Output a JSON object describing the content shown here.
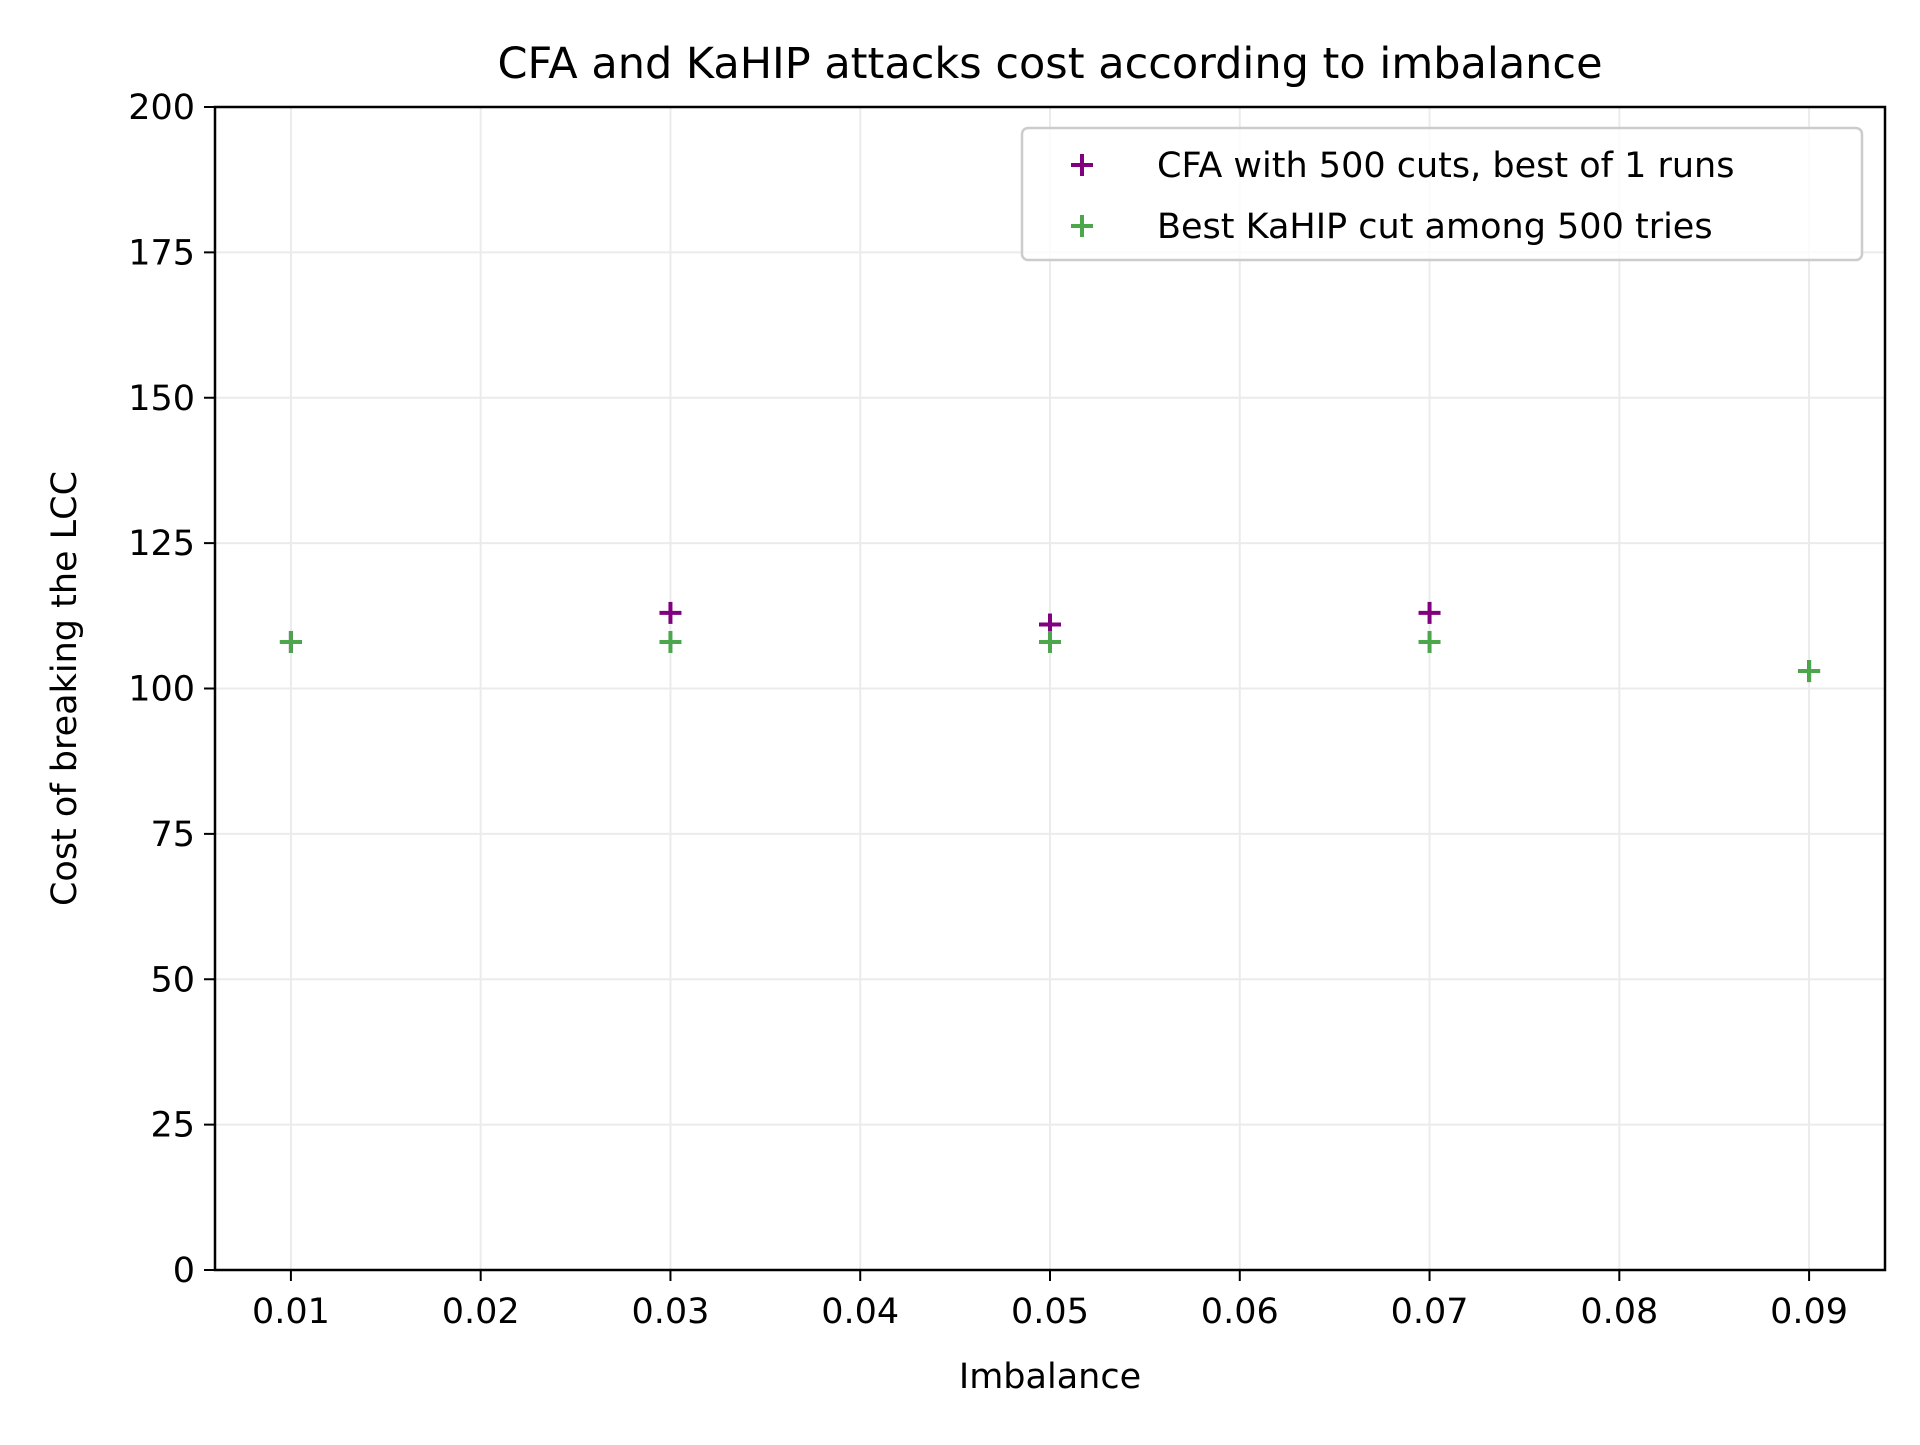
{
  "chart_data": {
    "type": "scatter",
    "title": "CFA and KaHIP attacks cost according to imbalance",
    "xlabel": "Imbalance",
    "ylabel": "Cost of breaking the LCC",
    "xlim": [
      0.006,
      0.094
    ],
    "ylim": [
      0,
      200
    ],
    "grid": true,
    "legend_position": "top-right",
    "x_ticks": [
      "0.01",
      "0.02",
      "0.03",
      "0.04",
      "0.05",
      "0.06",
      "0.07",
      "0.08",
      "0.09"
    ],
    "y_ticks": [
      "0",
      "25",
      "50",
      "75",
      "100",
      "125",
      "150",
      "175",
      "200"
    ],
    "series": [
      {
        "name": "CFA with 500 cuts, best of 1 runs",
        "color": "#800080",
        "marker": "plus",
        "x": [
          0.01,
          0.03,
          0.05,
          0.07,
          0.09
        ],
        "y": [
          108,
          113,
          111,
          113,
          103
        ]
      },
      {
        "name": "Best KaHIP cut among 500 tries",
        "color": "#4ca64c",
        "marker": "plus",
        "x": [
          0.01,
          0.03,
          0.05,
          0.07,
          0.09
        ],
        "y": [
          108,
          108,
          108,
          108,
          103
        ]
      }
    ]
  }
}
